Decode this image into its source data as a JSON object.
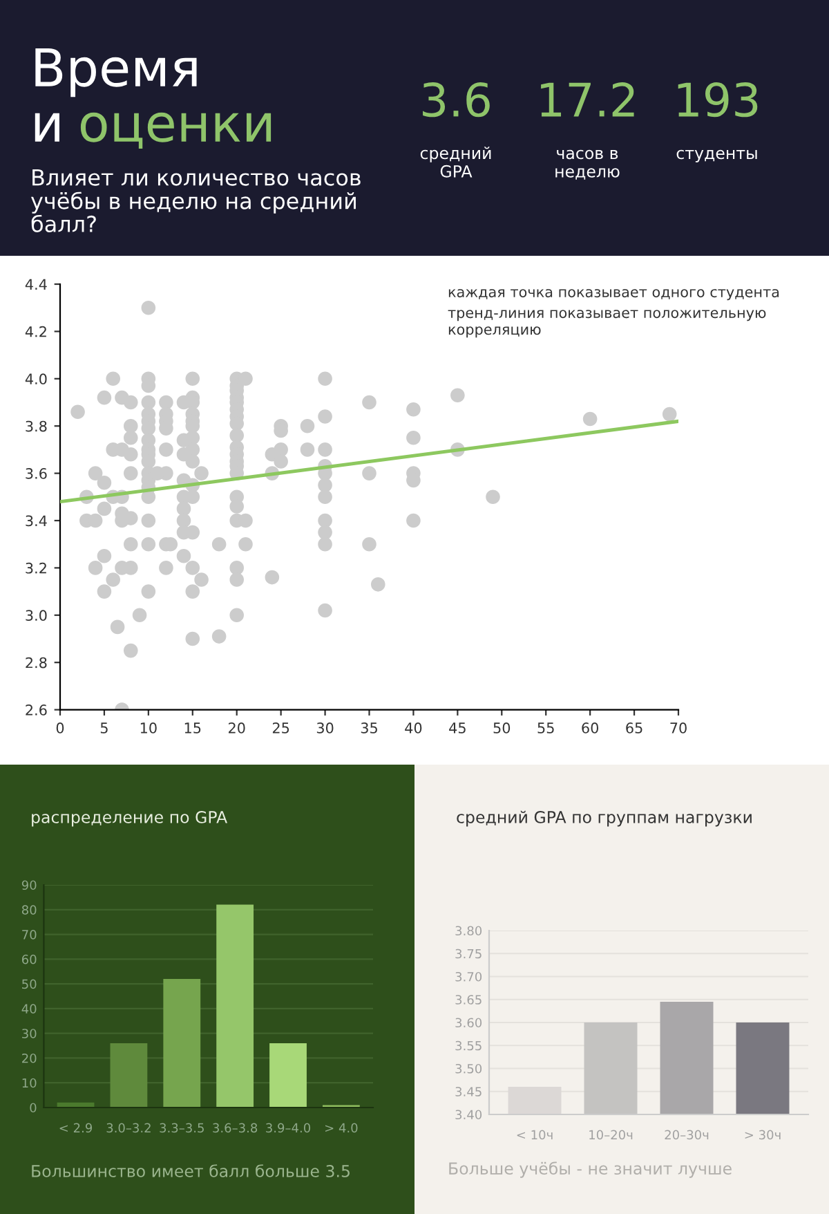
{
  "chart_data": [
    {
      "type": "other",
      "title": "Время и оценки",
      "subtitle": "Влияет ли количество часов учёбы в неделю на средний балл?",
      "annotations": [
        "3.6",
        "средний GPA",
        "17.2",
        "часов в неделю",
        "193",
        "студенты"
      ]
    },
    {
      "type": "scatter",
      "grid": false,
      "annotations": [
        "каждая точка показывает одного студента",
        "тренд-линия показывает положительную корреляцию"
      ],
      "xlim": [
        0,
        70
      ],
      "xticks": [
        0,
        5,
        10,
        15,
        20,
        25,
        30,
        35,
        40,
        45,
        50,
        55,
        60,
        65,
        70
      ],
      "ylim": [
        2.6,
        4.4
      ],
      "yticks": [
        2.6,
        2.8,
        {
          "value": 3,
          "label": "3.0"
        },
        3.2,
        3.4,
        3.6,
        3.8,
        {
          "value": 4,
          "label": "4.0"
        },
        4.2,
        4.4
      ],
      "series": [
        {
          "type": "scatter",
          "color": "#cccccc",
          "marker": "circle",
          "x": [
            10,
            2,
            6,
            5,
            7,
            8,
            10,
            10,
            10,
            10,
            10,
            10,
            10,
            10,
            10,
            10,
            10,
            10,
            10,
            10,
            10,
            10,
            10,
            8,
            8,
            6,
            7,
            8,
            4,
            5,
            3,
            6,
            7,
            8,
            5,
            3,
            4,
            7,
            7,
            8,
            8,
            12,
            12.5,
            5,
            4,
            7,
            8,
            6,
            5,
            9,
            6.5,
            8,
            7,
            12,
            12,
            12,
            12,
            12,
            12,
            12,
            11,
            15,
            15,
            15,
            15,
            15,
            15,
            15,
            15,
            15,
            15,
            15,
            15,
            15,
            15,
            14,
            14,
            14,
            14,
            14,
            14,
            14,
            14,
            14,
            15,
            16,
            16,
            18,
            18,
            20,
            20,
            20,
            20,
            20,
            20,
            20,
            20,
            20,
            20,
            20,
            20,
            20,
            20,
            20,
            20,
            20,
            20,
            20,
            20,
            21,
            21,
            21,
            24,
            24,
            24,
            25,
            25,
            25,
            25,
            28,
            28,
            30,
            30,
            30,
            30,
            30,
            30,
            30,
            30,
            30,
            30,
            30,
            35,
            35,
            35,
            36,
            40,
            40,
            40,
            40,
            40,
            45,
            45,
            49,
            60,
            69
          ],
          "values": [
            4.3,
            3.86,
            4.0,
            3.92,
            3.92,
            3.9,
            4.0,
            3.97,
            3.9,
            3.85,
            3.82,
            3.79,
            3.74,
            3.7,
            3.68,
            3.65,
            3.6,
            3.57,
            3.54,
            3.5,
            3.4,
            3.3,
            3.1,
            3.8,
            3.75,
            3.7,
            3.7,
            3.68,
            3.6,
            3.56,
            3.5,
            3.5,
            3.5,
            3.6,
            3.45,
            3.4,
            3.4,
            3.43,
            3.4,
            3.41,
            3.3,
            3.3,
            3.3,
            3.25,
            3.2,
            3.2,
            3.2,
            3.15,
            3.1,
            3.0,
            2.95,
            2.85,
            2.6,
            3.9,
            3.85,
            3.82,
            3.79,
            3.7,
            3.6,
            3.2,
            3.6,
            4.0,
            3.92,
            3.9,
            3.85,
            3.82,
            3.8,
            3.75,
            3.7,
            3.65,
            3.55,
            3.5,
            3.1,
            2.9,
            3.2,
            3.9,
            3.74,
            3.68,
            3.57,
            3.5,
            3.45,
            3.4,
            3.35,
            3.25,
            3.35,
            3.6,
            3.15,
            3.3,
            2.91,
            4.0,
            3.97,
            3.95,
            3.92,
            3.9,
            3.87,
            3.84,
            3.81,
            3.76,
            3.71,
            3.68,
            3.65,
            3.63,
            3.6,
            3.5,
            3.46,
            3.4,
            3.2,
            3.15,
            3.0,
            4.0,
            3.4,
            3.3,
            3.6,
            3.68,
            3.16,
            3.8,
            3.78,
            3.7,
            3.65,
            3.8,
            3.7,
            4.0,
            3.84,
            3.7,
            3.63,
            3.6,
            3.55,
            3.5,
            3.4,
            3.35,
            3.3,
            3.02,
            3.9,
            3.6,
            3.3,
            3.13,
            3.87,
            3.75,
            3.6,
            3.57,
            3.4,
            3.93,
            3.7,
            3.5,
            3.83,
            3.85
          ]
        },
        {
          "type": "line",
          "color": "#8dc85f",
          "x": [
            0,
            70
          ],
          "values": [
            3.48,
            3.82
          ]
        }
      ]
    },
    {
      "type": "bar",
      "title": "распределение по GPA",
      "annotations": [
        "Большинство имеет балл больше 3.5"
      ],
      "grid": "y",
      "categories": [
        "< 2.9",
        "3.0–3.2",
        "3.3–3.5",
        "3.6–3.8",
        "3.9–4.0",
        "> 4.0"
      ],
      "values": [
        2,
        26,
        52,
        82,
        26,
        1
      ],
      "colors": [
        "#4b7a2d",
        "#5f8a3c",
        "#76a54e",
        "#95c66a",
        "#a8d878",
        "#8fbd5e"
      ],
      "ylim": [
        0,
        90
      ],
      "yticks": [
        0,
        10,
        20,
        30,
        40,
        50,
        60,
        70,
        80,
        90
      ]
    },
    {
      "type": "bar",
      "title": "средний GPA по группам нагрузки",
      "annotations": [
        "Больше учёбы - не значит лучше"
      ],
      "grid": "y",
      "categories": [
        "< 10ч",
        "10–20ч",
        "20–30ч",
        "> 30ч"
      ],
      "values": [
        3.46,
        3.6,
        3.645,
        3.6
      ],
      "colors": [
        "#dcd8d6",
        "#c4c3c1",
        "#a9a7a9",
        "#7a7880"
      ],
      "ylim": [
        3.4,
        3.8
      ],
      "yticks": [
        {
          "value": 3.4,
          "label": "3.40"
        },
        {
          "value": 3.45,
          "label": "3.45"
        },
        {
          "value": 3.5,
          "label": "3.50"
        },
        {
          "value": 3.55,
          "label": "3.55"
        },
        {
          "value": 3.6,
          "label": "3.60"
        },
        {
          "value": 3.65,
          "label": "3.65"
        },
        {
          "value": 3.7,
          "label": "3.70"
        },
        {
          "value": 3.75,
          "label": "3.75"
        },
        {
          "value": 3.8,
          "label": "3.80"
        }
      ]
    }
  ]
}
